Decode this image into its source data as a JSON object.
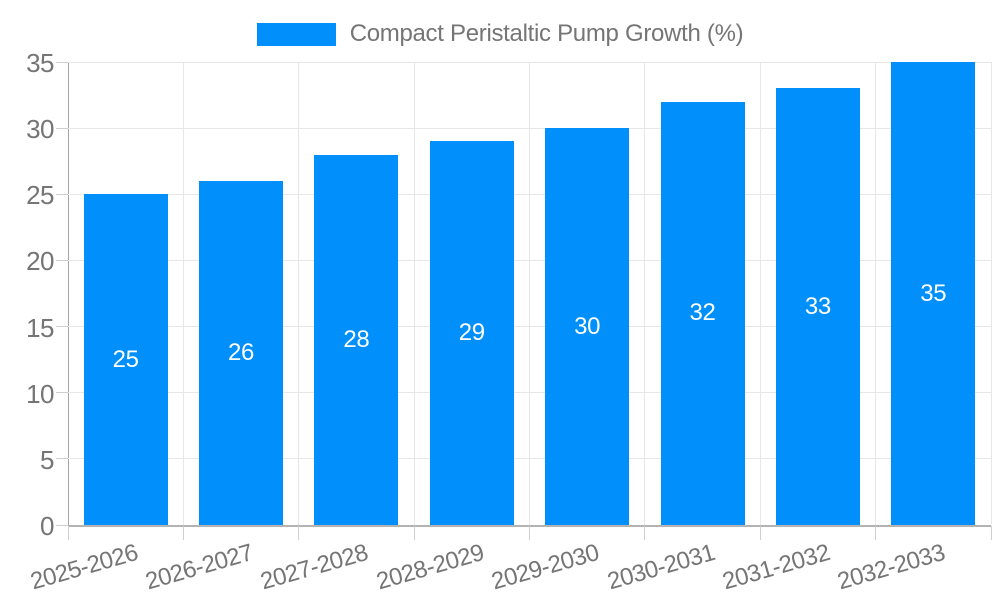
{
  "legend": {
    "label": "Compact Peristaltic Pump Growth (%)",
    "swatch_color": "#008FFB"
  },
  "chart_data": {
    "type": "bar",
    "title": "Compact Peristaltic Pump Growth (%)",
    "categories": [
      "2025-2026",
      "2026-2027",
      "2027-2028",
      "2028-2029",
      "2029-2030",
      "2030-2031",
      "2031-2032",
      "2032-2033"
    ],
    "values": [
      25,
      26,
      28,
      29,
      30,
      32,
      33,
      35
    ],
    "xlabel": "",
    "ylabel": "",
    "ylim": [
      0,
      35
    ],
    "yticks": [
      0,
      5,
      10,
      15,
      20,
      25,
      30,
      35
    ],
    "bar_color": "#008FFB",
    "value_label_color": "#ffffff",
    "value_label_position": "inside-center",
    "grid": true,
    "legend_position": "top-center",
    "x_label_rotation_deg": -16
  }
}
